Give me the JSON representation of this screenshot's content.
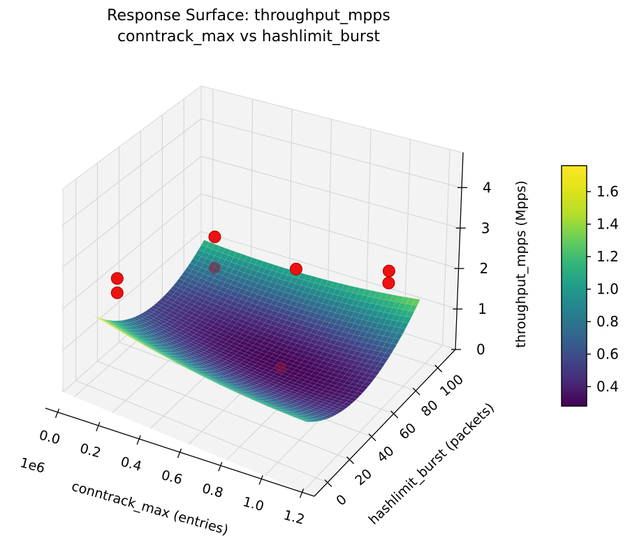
{
  "title": {
    "line1": "Response Surface: throughput_mpps",
    "line2": "conntrack_max vs hashlimit_burst"
  },
  "chart_data": {
    "type": "surface3d",
    "view": {
      "elev": 30,
      "azim": -60
    },
    "x_axis": {
      "label": "conntrack_max (entries)",
      "offset_text": "1e6",
      "ticks": [
        0,
        200000,
        400000,
        600000,
        800000,
        1000000,
        1200000
      ],
      "tick_labels": [
        "0.0",
        "0.2",
        "0.4",
        "0.6",
        "0.8",
        "1.0",
        "1.2"
      ],
      "range": [
        -60000,
        1260000
      ]
    },
    "y_axis": {
      "label": "hashlimit_burst (packets)",
      "ticks": [
        0,
        20,
        40,
        60,
        80,
        100
      ],
      "tick_labels": [
        "0",
        "20",
        "40",
        "60",
        "80",
        "100"
      ],
      "range": [
        -12,
        116
      ]
    },
    "z_axis": {
      "label": "throughput_mpps (Mpps)",
      "ticks": [
        0,
        1,
        2,
        3,
        4
      ],
      "tick_labels": [
        "0",
        "1",
        "2",
        "3",
        "4"
      ],
      "range": [
        0,
        4.87
      ]
    },
    "surface": {
      "colormap": "viridis",
      "x_domain": [
        0,
        1120000
      ],
      "y_domain": [
        5,
        108
      ],
      "model": {
        "comment": "z = z_min + a*(u-u0)^2 + b*(v-v0)^2 + d*(u-u0)*(v-v0); u=x/1e6, v=y/100",
        "z_min": 0.28,
        "u0": 0.7,
        "v0": 0.58,
        "a": 0.5,
        "b": 3.0,
        "d": 0.6
      },
      "color_range": [
        0.27,
        1.62
      ],
      "mesh_line_color": "rgba(255,255,255,0.22)"
    },
    "scatter": {
      "color": "#ee1111",
      "edge_color": "#aa0000",
      "occluded_color": "rgba(140,26,61,0.55)",
      "points": [
        {
          "conntrack_max": 100000,
          "hashlimit_burst": 10,
          "throughput_mpps": 2.55,
          "occluded": false
        },
        {
          "conntrack_max": 100000,
          "hashlimit_burst": 10,
          "throughput_mpps": 2.2,
          "occluded": false
        },
        {
          "conntrack_max": 100000,
          "hashlimit_burst": 100,
          "throughput_mpps": 1.5,
          "occluded": false
        },
        {
          "conntrack_max": 100000,
          "hashlimit_burst": 100,
          "throughput_mpps": 0.7,
          "occluded": true
        },
        {
          "conntrack_max": 550000,
          "hashlimit_burst": 95,
          "throughput_mpps": 1.5,
          "occluded": false
        },
        {
          "conntrack_max": 1000000,
          "hashlimit_burst": 100,
          "throughput_mpps": 2.0,
          "occluded": false
        },
        {
          "conntrack_max": 1000000,
          "hashlimit_burst": 100,
          "throughput_mpps": 1.7,
          "occluded": false
        },
        {
          "conntrack_max": 700000,
          "hashlimit_burst": 55,
          "throughput_mpps": 0.32,
          "occluded": true
        }
      ]
    },
    "colorbar": {
      "colormap": "viridis",
      "range": [
        0.28,
        1.76
      ],
      "ticks": [
        0.4,
        0.6,
        0.8,
        1.0,
        1.2,
        1.4,
        1.6
      ],
      "tick_labels": [
        "0.4",
        "0.6",
        "0.8",
        "1.0",
        "1.2",
        "1.4",
        "1.6"
      ]
    },
    "style": {
      "pane_color": "#f3f3f3",
      "grid_color": "#d2d2d2",
      "pane_edge_color": "#d7d7d7",
      "axis_line_color": "#000000",
      "background": "#ffffff"
    }
  }
}
